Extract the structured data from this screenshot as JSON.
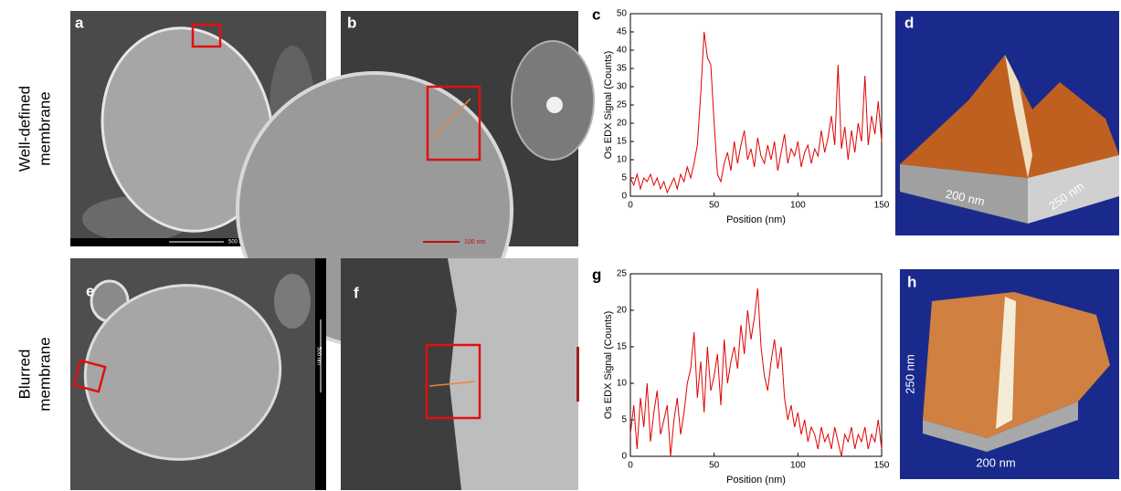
{
  "row_labels": [
    [
      "Well-defined",
      "membrane"
    ],
    [
      "Blurred",
      "membrane"
    ]
  ],
  "panels": {
    "a": {
      "label": "a",
      "scale_bar": "500 nm"
    },
    "b": {
      "label": "b",
      "scale_bar": "100 nm"
    },
    "d": {
      "label": "d",
      "x_size": "200 nm",
      "y_size": "250 nm"
    },
    "e": {
      "label": "e",
      "scale_bar": "500 nm"
    },
    "f": {
      "label": "f"
    },
    "h": {
      "label": "h",
      "y_size": "250 nm",
      "x_size": "200 nm"
    }
  },
  "chart_data": [
    {
      "type": "line",
      "panel_label": "c",
      "x_label": "Position (nm)",
      "y_label": "Os EDX Signal (Counts)",
      "x": [
        0,
        2,
        4,
        6,
        8,
        10,
        12,
        14,
        16,
        18,
        20,
        22,
        24,
        26,
        28,
        30,
        32,
        34,
        36,
        38,
        40,
        42,
        44,
        46,
        48,
        50,
        52,
        54,
        56,
        58,
        60,
        62,
        64,
        66,
        68,
        70,
        72,
        74,
        76,
        78,
        80,
        82,
        84,
        86,
        88,
        90,
        92,
        94,
        96,
        98,
        100,
        102,
        104,
        106,
        108,
        110,
        112,
        114,
        116,
        118,
        120,
        122,
        124,
        126,
        128,
        130,
        132,
        134,
        136,
        138,
        140,
        142,
        144,
        146,
        148,
        150
      ],
      "series": [
        {
          "color": "#e00000",
          "values": [
            5,
            3,
            6,
            2,
            5,
            4,
            6,
            3,
            5,
            2,
            4,
            1,
            3,
            5,
            2,
            6,
            4,
            8,
            5,
            9,
            14,
            28,
            45,
            38,
            36,
            20,
            6,
            4,
            9,
            12,
            7,
            15,
            9,
            14,
            18,
            10,
            13,
            8,
            16,
            11,
            9,
            14,
            10,
            15,
            7,
            12,
            17,
            9,
            13,
            11,
            15,
            8,
            12,
            14,
            9,
            13,
            11,
            18,
            12,
            16,
            22,
            14,
            36,
            13,
            19,
            10,
            18,
            12,
            20,
            15,
            33,
            14,
            22,
            17,
            26,
            15
          ]
        }
      ],
      "xlim": [
        0,
        150
      ],
      "ylim": [
        0,
        50
      ],
      "xticks": [
        0,
        50,
        100,
        150
      ],
      "yticks": [
        0,
        5,
        10,
        15,
        20,
        25,
        30,
        35,
        40,
        45,
        50
      ]
    },
    {
      "type": "line",
      "panel_label": "g",
      "x_label": "Position (nm)",
      "y_label": "Os EDX Signal (Counts)",
      "x": [
        0,
        2,
        4,
        6,
        8,
        10,
        12,
        14,
        16,
        18,
        20,
        22,
        24,
        26,
        28,
        30,
        32,
        34,
        36,
        38,
        40,
        42,
        44,
        46,
        48,
        50,
        52,
        54,
        56,
        58,
        60,
        62,
        64,
        66,
        68,
        70,
        72,
        74,
        76,
        78,
        80,
        82,
        84,
        86,
        88,
        90,
        92,
        94,
        96,
        98,
        100,
        102,
        104,
        106,
        108,
        110,
        112,
        114,
        116,
        118,
        120,
        122,
        124,
        126,
        128,
        130,
        132,
        134,
        136,
        138,
        140,
        142,
        144,
        146,
        148,
        150
      ],
      "series": [
        {
          "color": "#e00000",
          "values": [
            3,
            7,
            1,
            8,
            4,
            10,
            2,
            6,
            9,
            3,
            5,
            7,
            0,
            5,
            8,
            3,
            6,
            10,
            12,
            17,
            8,
            13,
            6,
            15,
            9,
            11,
            14,
            7,
            16,
            10,
            13,
            15,
            12,
            18,
            14,
            20,
            16,
            19,
            23,
            15,
            11,
            9,
            13,
            16,
            12,
            15,
            8,
            5,
            7,
            4,
            6,
            3,
            5,
            2,
            4,
            3,
            1,
            4,
            2,
            3,
            1,
            4,
            2,
            0,
            3,
            2,
            4,
            1,
            3,
            2,
            4,
            1,
            3,
            2,
            5,
            1
          ]
        }
      ],
      "xlim": [
        0,
        150
      ],
      "ylim": [
        0,
        25
      ],
      "xticks": [
        0,
        50,
        100,
        150
      ],
      "yticks": [
        0,
        5,
        10,
        15,
        20,
        25
      ]
    }
  ]
}
